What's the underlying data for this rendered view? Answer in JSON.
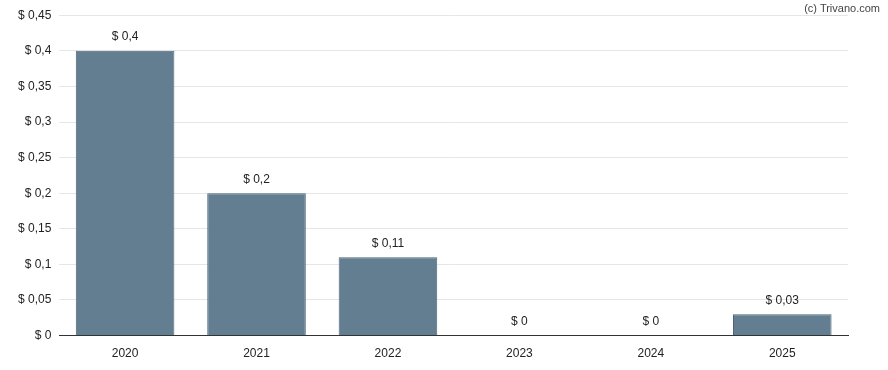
{
  "chart_data": {
    "type": "bar",
    "annotations": [
      "(c) Trivano.com"
    ],
    "categories": [
      "2020",
      "2021",
      "2022",
      "2023",
      "2024",
      "2025"
    ],
    "values": [
      0.4,
      0.2,
      0.11,
      0,
      0,
      0.03
    ],
    "value_labels": [
      "$ 0,4",
      "$ 0,2",
      "$ 0,11",
      "$ 0",
      "$ 0",
      "$ 0,03"
    ],
    "data_labels": true,
    "color": "#647e91",
    "ylim": [
      0,
      0.45
    ],
    "yticks": [
      {
        "value": 0,
        "label": "$ 0"
      },
      {
        "value": 0.05,
        "label": "$ 0,05"
      },
      {
        "value": 0.1,
        "label": "$ 0,1"
      },
      {
        "value": 0.15,
        "label": "$ 0,15"
      },
      {
        "value": 0.2,
        "label": "$ 0,2"
      },
      {
        "value": 0.25,
        "label": "$ 0,25"
      },
      {
        "value": 0.3,
        "label": "$ 0,3"
      },
      {
        "value": 0.35,
        "label": "$ 0,35"
      },
      {
        "value": 0.4,
        "label": "$ 0,4"
      },
      {
        "value": 0.45,
        "label": "$ 0,45"
      }
    ],
    "grid": true
  }
}
